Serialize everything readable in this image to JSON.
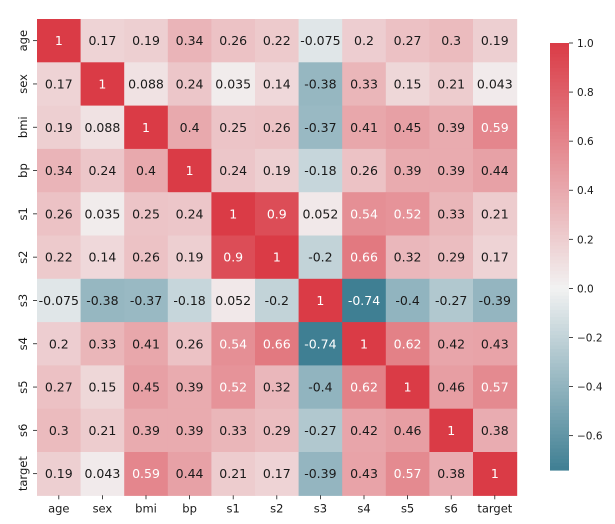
{
  "chart_data": {
    "type": "heatmap",
    "title": "",
    "xlabel": "",
    "ylabel": "",
    "labels": [
      "age",
      "sex",
      "bmi",
      "bp",
      "s1",
      "s2",
      "s3",
      "s4",
      "s5",
      "s6",
      "target"
    ],
    "matrix": [
      [
        1,
        0.17,
        0.19,
        0.34,
        0.26,
        0.22,
        -0.075,
        0.2,
        0.27,
        0.3,
        0.19
      ],
      [
        0.17,
        1,
        0.088,
        0.24,
        0.035,
        0.14,
        -0.38,
        0.33,
        0.15,
        0.21,
        0.043
      ],
      [
        0.19,
        0.088,
        1,
        0.4,
        0.25,
        0.26,
        -0.37,
        0.41,
        0.45,
        0.39,
        0.59
      ],
      [
        0.34,
        0.24,
        0.4,
        1,
        0.24,
        0.19,
        -0.18,
        0.26,
        0.39,
        0.39,
        0.44
      ],
      [
        0.26,
        0.035,
        0.25,
        0.24,
        1,
        0.9,
        0.052,
        0.54,
        0.52,
        0.33,
        0.21
      ],
      [
        0.22,
        0.14,
        0.26,
        0.19,
        0.9,
        1,
        -0.2,
        0.66,
        0.32,
        0.29,
        0.17
      ],
      [
        -0.075,
        -0.38,
        -0.37,
        -0.18,
        0.052,
        -0.2,
        1,
        -0.74,
        -0.4,
        -0.27,
        -0.39
      ],
      [
        0.2,
        0.33,
        0.41,
        0.26,
        0.54,
        0.66,
        -0.74,
        1,
        0.62,
        0.42,
        0.43
      ],
      [
        0.27,
        0.15,
        0.45,
        0.39,
        0.52,
        0.32,
        -0.4,
        0.62,
        1,
        0.46,
        0.57
      ],
      [
        0.3,
        0.21,
        0.39,
        0.39,
        0.33,
        0.29,
        -0.27,
        0.42,
        0.46,
        1,
        0.38
      ],
      [
        0.19,
        0.043,
        0.59,
        0.44,
        0.21,
        0.17,
        -0.39,
        0.43,
        0.57,
        0.38,
        1
      ]
    ],
    "colorbar": {
      "range": [
        -0.74,
        1.0
      ],
      "ticks": [
        "1.0",
        "0.8",
        "0.6",
        "0.4",
        "0.2",
        "0.0",
        "−0.2",
        "−0.4",
        "−0.6"
      ],
      "tick_values": [
        1.0,
        0.8,
        0.6,
        0.4,
        0.2,
        0.0,
        -0.2,
        -0.4,
        -0.6
      ]
    },
    "colors": {
      "negative": "#3f7f93",
      "center": "#f2f2f2",
      "positive": "#da3b46"
    }
  }
}
